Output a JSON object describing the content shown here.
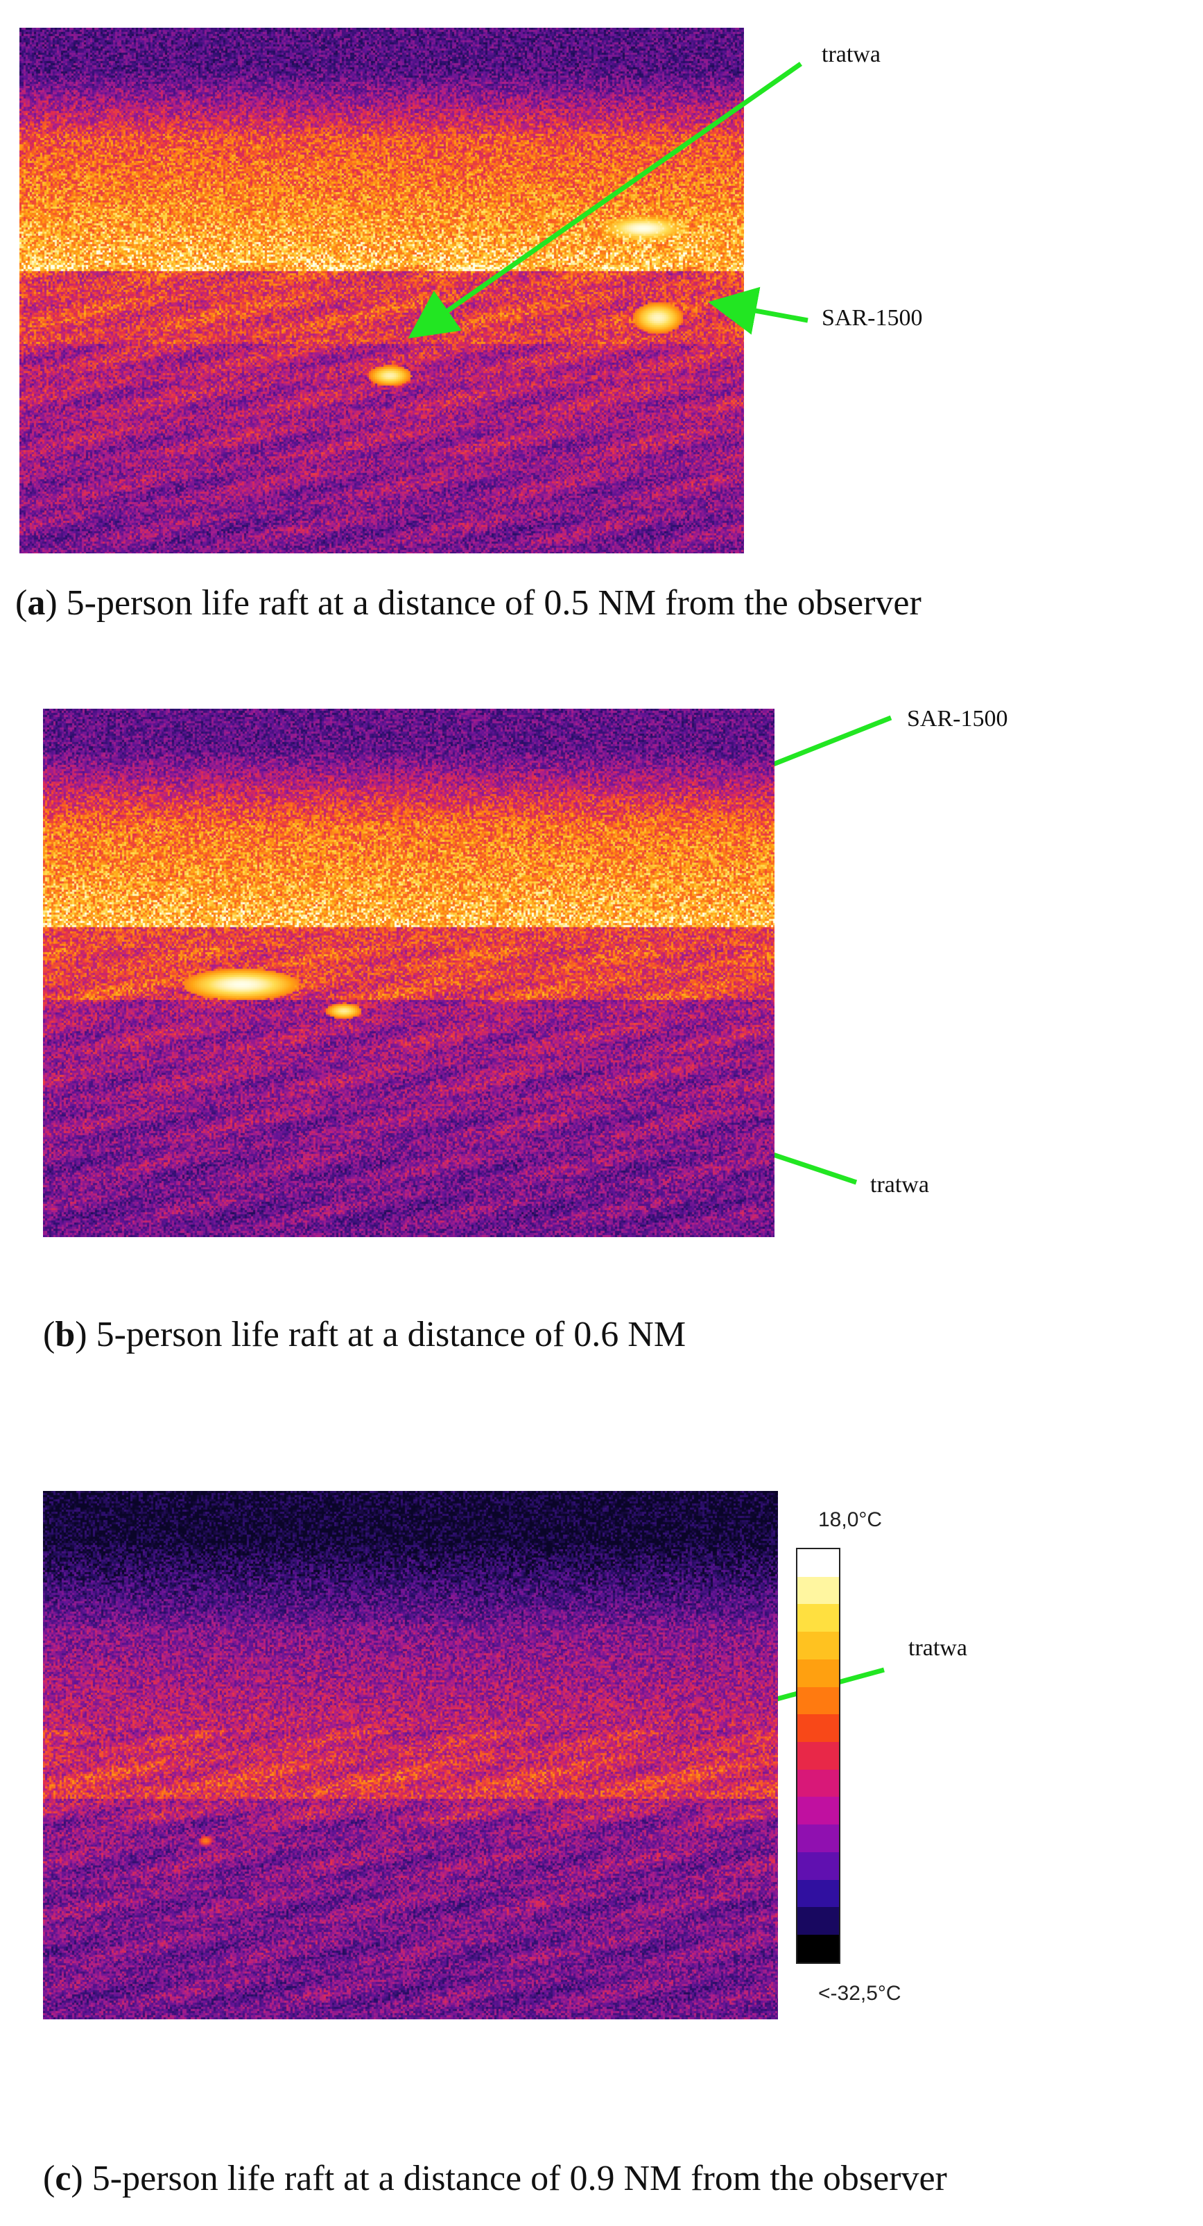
{
  "panels": [
    {
      "id": "a",
      "labels": [
        "tratwa",
        "SAR-1500"
      ],
      "caption_letter": "a",
      "caption_text": "5-person life raft at a distance of 0.5 NM from the observer"
    },
    {
      "id": "b",
      "labels": [
        "SAR-1500",
        "tratwa"
      ],
      "caption_letter": "b",
      "caption_text": "5-person life raft at a distance of 0.6 NM"
    },
    {
      "id": "c",
      "labels": [
        "tratwa"
      ],
      "caption_letter": "c",
      "caption_text": "5-person life raft at a distance of 0.9 NM from the observer",
      "scale": {
        "max": "18,0°C",
        "min": "<-32,5°C"
      }
    }
  ],
  "colors": {
    "arrow": "#22e622",
    "scale": [
      "#ffffff",
      "#fff6a0",
      "#ffe040",
      "#ffc220",
      "#ffa010",
      "#ff7a10",
      "#f84818",
      "#e82848",
      "#d81878",
      "#c010a0",
      "#9010b0",
      "#6010b0",
      "#3010a0",
      "#180860",
      "#000000"
    ]
  }
}
